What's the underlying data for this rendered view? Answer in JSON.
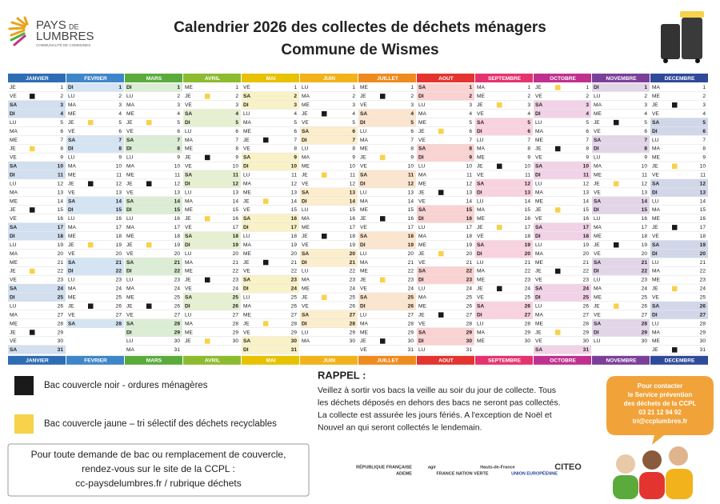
{
  "header": {
    "logo": [
      "PAYS",
      "DE",
      "LUMBRES",
      "COMMUNAUTÉ DE COMMUNES"
    ],
    "title": [
      "Calendrier 2026 des collectes de déchets ménagers",
      "Commune de Wismes"
    ]
  },
  "calendar": {
    "weekend": [
      "SA",
      "DI"
    ],
    "months": [
      {
        "name": "JANVIER",
        "color": "#2e6db4",
        "weekdays": [
          "JE",
          "VE",
          "SA",
          "DI",
          "LU",
          "MA",
          "ME",
          "JE",
          "VE",
          "SA",
          "DI",
          "LU",
          "MA",
          "ME",
          "JE",
          "VE",
          "SA",
          "DI",
          "LU",
          "MA",
          "ME",
          "JE",
          "VE",
          "SA",
          "DI",
          "LU",
          "MA",
          "ME",
          "JE",
          "VE",
          "SA"
        ],
        "days": [
          1,
          2,
          3,
          4,
          5,
          6,
          7,
          8,
          9,
          10,
          11,
          12,
          13,
          14,
          15,
          16,
          17,
          18,
          19,
          20,
          21,
          22,
          23,
          24,
          25,
          26,
          27,
          28,
          29,
          30,
          31
        ],
        "black": [
          2,
          15,
          29
        ],
        "yellow": [
          8,
          22
        ]
      },
      {
        "name": "FEVRIER",
        "color": "#3f86c8",
        "weekdays": [
          "DI",
          "LU",
          "MA",
          "ME",
          "JE",
          "VE",
          "SA",
          "DI",
          "LU",
          "MA",
          "ME",
          "JE",
          "VE",
          "SA",
          "DI",
          "LU",
          "MA",
          "ME",
          "JE",
          "VE",
          "SA",
          "DI",
          "LU",
          "MA",
          "ME",
          "JE",
          "VE",
          "SA"
        ],
        "days": [
          1,
          2,
          3,
          4,
          5,
          6,
          7,
          8,
          9,
          10,
          11,
          12,
          13,
          14,
          15,
          16,
          17,
          18,
          19,
          20,
          21,
          22,
          23,
          24,
          25,
          26,
          27,
          28
        ],
        "black": [
          12,
          26
        ],
        "yellow": [
          5,
          19
        ]
      },
      {
        "name": "MARS",
        "color": "#5aab3c",
        "weekdays": [
          "DI",
          "LU",
          "MA",
          "ME",
          "JE",
          "VE",
          "SA",
          "DI",
          "LU",
          "MA",
          "ME",
          "JE",
          "VE",
          "SA",
          "DI",
          "LU",
          "MA",
          "ME",
          "JE",
          "VE",
          "SA",
          "DI",
          "LU",
          "MA",
          "ME",
          "JE",
          "VE",
          "SA",
          "DI",
          "LU",
          "MA"
        ],
        "days": [
          1,
          2,
          3,
          4,
          5,
          6,
          7,
          8,
          9,
          10,
          11,
          12,
          13,
          14,
          15,
          16,
          17,
          18,
          19,
          20,
          21,
          22,
          23,
          24,
          25,
          26,
          27,
          28,
          29,
          30,
          31
        ],
        "black": [
          12,
          26
        ],
        "yellow": [
          5,
          19
        ]
      },
      {
        "name": "AVRIL",
        "color": "#8dbb2f",
        "weekdays": [
          "ME",
          "JE",
          "VE",
          "SA",
          "DI",
          "LU",
          "MA",
          "ME",
          "JE",
          "VE",
          "SA",
          "DI",
          "LU",
          "MA",
          "ME",
          "JE",
          "VE",
          "SA",
          "DI",
          "LU",
          "MA",
          "ME",
          "JE",
          "VE",
          "SA",
          "DI",
          "LU",
          "MA",
          "ME",
          "JE"
        ],
        "days": [
          1,
          2,
          3,
          4,
          5,
          6,
          7,
          8,
          9,
          10,
          11,
          12,
          13,
          14,
          15,
          16,
          17,
          18,
          19,
          20,
          21,
          22,
          23,
          24,
          25,
          26,
          27,
          28,
          29,
          30
        ],
        "black": [
          9,
          23
        ],
        "yellow": [
          2,
          16,
          30
        ]
      },
      {
        "name": "MAI",
        "color": "#e6c200",
        "weekdays": [
          "VE",
          "SA",
          "DI",
          "LU",
          "MA",
          "ME",
          "JE",
          "VE",
          "SA",
          "DI",
          "LU",
          "MA",
          "ME",
          "JE",
          "VE",
          "SA",
          "DI",
          "LU",
          "MA",
          "ME",
          "JE",
          "VE",
          "SA",
          "DI",
          "LU",
          "MA",
          "ME",
          "JE",
          "VE",
          "SA",
          "DI"
        ],
        "days": [
          1,
          2,
          3,
          4,
          5,
          6,
          7,
          8,
          9,
          10,
          11,
          12,
          13,
          14,
          15,
          16,
          17,
          18,
          19,
          20,
          21,
          22,
          23,
          24,
          25,
          26,
          27,
          28,
          29,
          30,
          31
        ],
        "black": [
          7,
          21
        ],
        "yellow": [
          14,
          28
        ]
      },
      {
        "name": "JUIN",
        "color": "#f2b21b",
        "weekdays": [
          "LU",
          "MA",
          "ME",
          "JE",
          "VE",
          "SA",
          "DI",
          "LU",
          "MA",
          "ME",
          "JE",
          "VE",
          "SA",
          "DI",
          "LU",
          "MA",
          "ME",
          "JE",
          "VE",
          "SA",
          "DI",
          "LU",
          "MA",
          "ME",
          "JE",
          "VE",
          "SA",
          "DI",
          "LU",
          "MA"
        ],
        "days": [
          1,
          2,
          3,
          4,
          5,
          6,
          7,
          8,
          9,
          10,
          11,
          12,
          13,
          14,
          15,
          16,
          17,
          18,
          19,
          20,
          21,
          22,
          23,
          24,
          25,
          26,
          27,
          28,
          29,
          30
        ],
        "black": [
          4,
          18
        ],
        "yellow": [
          11,
          25
        ]
      },
      {
        "name": "JUILLET",
        "color": "#ef8a1e",
        "weekdays": [
          "ME",
          "JE",
          "VE",
          "SA",
          "DI",
          "LU",
          "MA",
          "ME",
          "JE",
          "VE",
          "SA",
          "DI",
          "LU",
          "MA",
          "ME",
          "JE",
          "VE",
          "SA",
          "DI",
          "LU",
          "MA",
          "ME",
          "JE",
          "VE",
          "SA",
          "DI",
          "LU",
          "MA",
          "ME",
          "JE",
          "VE"
        ],
        "days": [
          1,
          2,
          3,
          4,
          5,
          6,
          7,
          8,
          9,
          10,
          11,
          12,
          13,
          14,
          15,
          16,
          17,
          18,
          19,
          20,
          21,
          22,
          23,
          24,
          25,
          26,
          27,
          28,
          29,
          30,
          31
        ],
        "black": [
          2,
          16,
          30
        ],
        "yellow": [
          9,
          23
        ]
      },
      {
        "name": "AOUT",
        "color": "#e3342f",
        "weekdays": [
          "SA",
          "DI",
          "LU",
          "MA",
          "ME",
          "JE",
          "VE",
          "SA",
          "DI",
          "LU",
          "MA",
          "ME",
          "JE",
          "VE",
          "SA",
          "DI",
          "LU",
          "MA",
          "ME",
          "JE",
          "VE",
          "SA",
          "DI",
          "LU",
          "MA",
          "ME",
          "JE",
          "VE",
          "SA",
          "DI",
          "LU"
        ],
        "days": [
          1,
          2,
          3,
          4,
          5,
          6,
          7,
          8,
          9,
          10,
          11,
          12,
          13,
          14,
          15,
          16,
          17,
          18,
          19,
          20,
          21,
          22,
          23,
          24,
          25,
          26,
          27,
          28,
          29,
          30,
          31
        ],
        "black": [
          13,
          27
        ],
        "yellow": [
          6,
          20
        ]
      },
      {
        "name": "SEPTEMBRE",
        "color": "#e5336f",
        "weekdays": [
          "MA",
          "ME",
          "JE",
          "VE",
          "SA",
          "DI",
          "LU",
          "MA",
          "ME",
          "JE",
          "VE",
          "SA",
          "DI",
          "LU",
          "MA",
          "ME",
          "JE",
          "VE",
          "SA",
          "DI",
          "LU",
          "MA",
          "ME",
          "JE",
          "VE",
          "SA",
          "DI",
          "LU",
          "MA",
          "ME"
        ],
        "days": [
          1,
          2,
          3,
          4,
          5,
          6,
          7,
          8,
          9,
          10,
          11,
          12,
          13,
          14,
          15,
          16,
          17,
          18,
          19,
          20,
          21,
          22,
          23,
          24,
          25,
          26,
          27,
          28,
          29,
          30
        ],
        "black": [
          10,
          24
        ],
        "yellow": [
          3,
          17
        ]
      },
      {
        "name": "OCTOBRE",
        "color": "#c0308f",
        "weekdays": [
          "JE",
          "VE",
          "SA",
          "DI",
          "LU",
          "MA",
          "ME",
          "JE",
          "VE",
          "SA",
          "DI",
          "LU",
          "MA",
          "ME",
          "JE",
          "VE",
          "SA",
          "DI",
          "LU",
          "MA",
          "ME",
          "JE",
          "VE",
          "SA",
          "DI",
          "LU",
          "MA",
          "ME",
          "JE",
          "VE",
          "SA"
        ],
        "days": [
          1,
          2,
          3,
          4,
          5,
          6,
          7,
          8,
          9,
          10,
          11,
          12,
          13,
          14,
          15,
          16,
          17,
          18,
          19,
          20,
          21,
          22,
          23,
          24,
          25,
          26,
          27,
          28,
          29,
          30,
          31
        ],
        "black": [
          8,
          22
        ],
        "yellow": [
          1,
          15,
          29
        ]
      },
      {
        "name": "NOVEMBRE",
        "color": "#7b3f98",
        "weekdays": [
          "DI",
          "LU",
          "MA",
          "ME",
          "JE",
          "VE",
          "SA",
          "DI",
          "LU",
          "MA",
          "ME",
          "JE",
          "VE",
          "SA",
          "DI",
          "LU",
          "MA",
          "ME",
          "JE",
          "VE",
          "SA",
          "DI",
          "LU",
          "MA",
          "ME",
          "JE",
          "VE",
          "SA",
          "DI",
          "LU"
        ],
        "days": [
          1,
          2,
          3,
          4,
          5,
          6,
          7,
          8,
          9,
          10,
          11,
          12,
          13,
          14,
          15,
          16,
          17,
          18,
          19,
          20,
          21,
          22,
          23,
          24,
          25,
          26,
          27,
          28,
          29,
          30
        ],
        "black": [
          5,
          19
        ],
        "yellow": [
          12,
          26
        ]
      },
      {
        "name": "DECEMBRE",
        "color": "#2f4a9a",
        "weekdays": [
          "MA",
          "ME",
          "JE",
          "VE",
          "SA",
          "DI",
          "LU",
          "MA",
          "ME",
          "JE",
          "VE",
          "SA",
          "DI",
          "LU",
          "MA",
          "ME",
          "JE",
          "VE",
          "SA",
          "DI",
          "LU",
          "MA",
          "ME",
          "JE",
          "VE",
          "SA",
          "DI",
          "LU",
          "MA",
          "ME",
          "JE"
        ],
        "days": [
          1,
          2,
          3,
          4,
          5,
          6,
          7,
          8,
          9,
          10,
          11,
          12,
          13,
          14,
          15,
          16,
          17,
          18,
          19,
          20,
          21,
          22,
          23,
          24,
          25,
          26,
          27,
          28,
          29,
          30,
          31
        ],
        "black": [
          3,
          17,
          31
        ],
        "yellow": [
          10,
          24
        ]
      }
    ]
  },
  "legend": [
    {
      "label": "Bac couvercle noir - ordures ménagères",
      "color": "#1a1a1a"
    },
    {
      "label": "Bac couvercle jaune – tri sélectif des déchets recyclables",
      "color": "#f7d24a"
    }
  ],
  "rappel": {
    "title": "RAPPEL :",
    "lines": [
      "Veillez à sortir vos bacs la veille au soir du jour de collecte. Tous",
      "les déchets déposés en dehors des bacs ne seront pas collectés.",
      "La collecte est assurée les jours fériés.  A l'exception de Noël et",
      "Nouvel an qui seront collectés le lendemain."
    ]
  },
  "contact": [
    "Pour contacter",
    "le Service prévention",
    "des déchets de la CCPL",
    "03 21 12 94 92",
    "tri@ccplumbres.fr"
  ],
  "website": [
    "Pour toute demande de bac ou remplacement de couvercle,",
    "rendez-vous sur le site de la CCPL :",
    "cc-paysdelumbres.fr / rubrique déchets"
  ],
  "logos": [
    "RÉPUBLIQUE FRANÇAISE",
    "ADEME",
    "agir",
    "FRANCE NATION VERTE",
    "Hauts-de-France",
    "UNION EUROPÉENNE",
    "CITEO"
  ]
}
